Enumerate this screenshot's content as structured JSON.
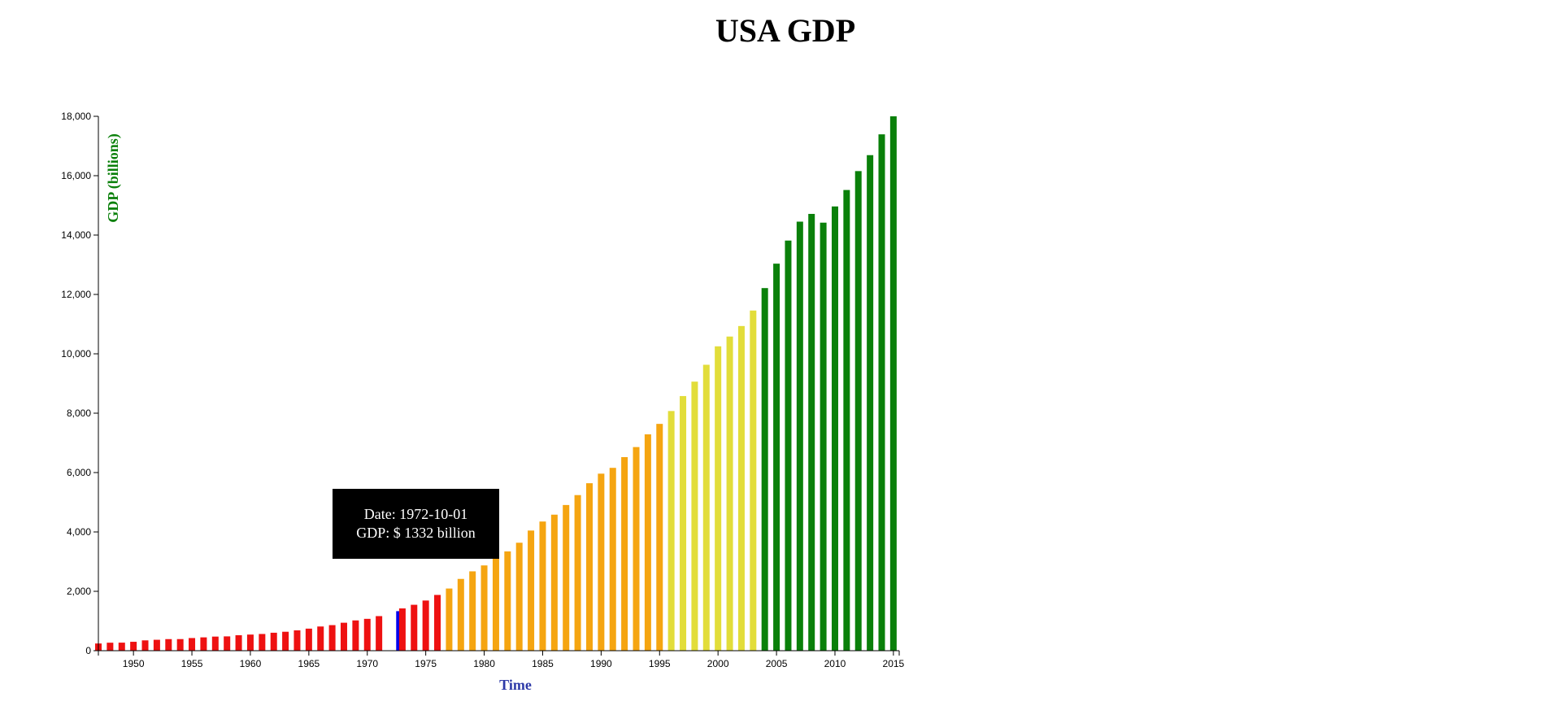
{
  "chart_data": {
    "type": "bar",
    "title": "USA GDP",
    "xlabel": "Time",
    "ylabel": "GDP (billions)",
    "ylim": [
      0,
      18000
    ],
    "xlim": [
      "1947-01-01",
      "2015-07-01"
    ],
    "y_ticks": [
      "0",
      "2,000",
      "4,000",
      "6,000",
      "8,000",
      "10,000",
      "12,000",
      "14,000",
      "16,000",
      "18,000"
    ],
    "x_ticks": [
      "1950",
      "1955",
      "1960",
      "1965",
      "1970",
      "1975",
      "1980",
      "1985",
      "1990",
      "1995",
      "2000",
      "2005",
      "2010",
      "2015"
    ],
    "grid": false,
    "legend": "none",
    "colors": {
      "red": "#ee1111",
      "orange": "#f5a511",
      "yellow": "#e2dd3a",
      "green": "#0a800a",
      "highlight": "#0000ee"
    },
    "highlighted_date": "1972-10-01",
    "dates": [
      "1947-01-01",
      "1948-01-01",
      "1949-01-01",
      "1950-01-01",
      "1951-01-01",
      "1952-01-01",
      "1953-01-01",
      "1954-01-01",
      "1955-01-01",
      "1956-01-01",
      "1957-01-01",
      "1958-01-01",
      "1959-01-01",
      "1960-01-01",
      "1961-01-01",
      "1962-01-01",
      "1963-01-01",
      "1964-01-01",
      "1965-01-01",
      "1966-01-01",
      "1967-01-01",
      "1968-01-01",
      "1969-01-01",
      "1970-01-01",
      "1971-01-01",
      "1972-10-01",
      "1973-01-01",
      "1974-01-01",
      "1975-01-01",
      "1976-01-01",
      "1977-01-01",
      "1978-01-01",
      "1979-01-01",
      "1980-01-01",
      "1981-01-01",
      "1982-01-01",
      "1983-01-01",
      "1984-01-01",
      "1985-01-01",
      "1986-01-01",
      "1987-01-01",
      "1988-01-01",
      "1989-01-01",
      "1990-01-01",
      "1991-01-01",
      "1992-01-01",
      "1993-01-01",
      "1994-01-01",
      "1995-01-01",
      "1996-01-01",
      "1997-01-01",
      "1998-01-01",
      "1999-01-01",
      "2000-01-01",
      "2001-01-01",
      "2002-01-01",
      "2003-01-01",
      "2004-01-01",
      "2005-01-01",
      "2006-01-01",
      "2007-01-01",
      "2008-01-01",
      "2009-01-01",
      "2010-01-01",
      "2011-01-01",
      "2012-01-01",
      "2013-01-01",
      "2014-01-01",
      "2015-01-01"
    ],
    "values": [
      243,
      269,
      271,
      300,
      348,
      368,
      390,
      391,
      426,
      449,
      475,
      482,
      521,
      543,
      563,
      605,
      638,
      685,
      743,
      815,
      861,
      942,
      1020,
      1073,
      1165,
      1332,
      1424,
      1546,
      1690,
      1878,
      2094,
      2418,
      2673,
      2872,
      3178,
      3345,
      3637,
      4047,
      4351,
      4582,
      4907,
      5241,
      5641,
      5963,
      6159,
      6520,
      6859,
      7287,
      7640,
      8073,
      8577,
      9063,
      9631,
      10252,
      10582,
      10936,
      11458,
      12214,
      13037,
      13815,
      14452,
      14713,
      14418,
      14964,
      15518,
      16155,
      16692,
      17393,
      18000
    ],
    "color_groups": [
      "red",
      "red",
      "red",
      "red",
      "red",
      "red",
      "red",
      "red",
      "red",
      "red",
      "red",
      "red",
      "red",
      "red",
      "red",
      "red",
      "red",
      "red",
      "red",
      "red",
      "red",
      "red",
      "red",
      "red",
      "red",
      "highlight",
      "red",
      "red",
      "red",
      "red",
      "orange",
      "orange",
      "orange",
      "orange",
      "orange",
      "orange",
      "orange",
      "orange",
      "orange",
      "orange",
      "orange",
      "orange",
      "orange",
      "orange",
      "orange",
      "orange",
      "orange",
      "orange",
      "orange",
      "yellow",
      "yellow",
      "yellow",
      "yellow",
      "yellow",
      "yellow",
      "yellow",
      "yellow",
      "green",
      "green",
      "green",
      "green",
      "green",
      "green",
      "green",
      "green",
      "green",
      "green",
      "green",
      "green"
    ]
  },
  "tooltip": {
    "date_line": "Date: 1972-10-01",
    "gdp_line": "GDP: $ 1332 billion"
  }
}
